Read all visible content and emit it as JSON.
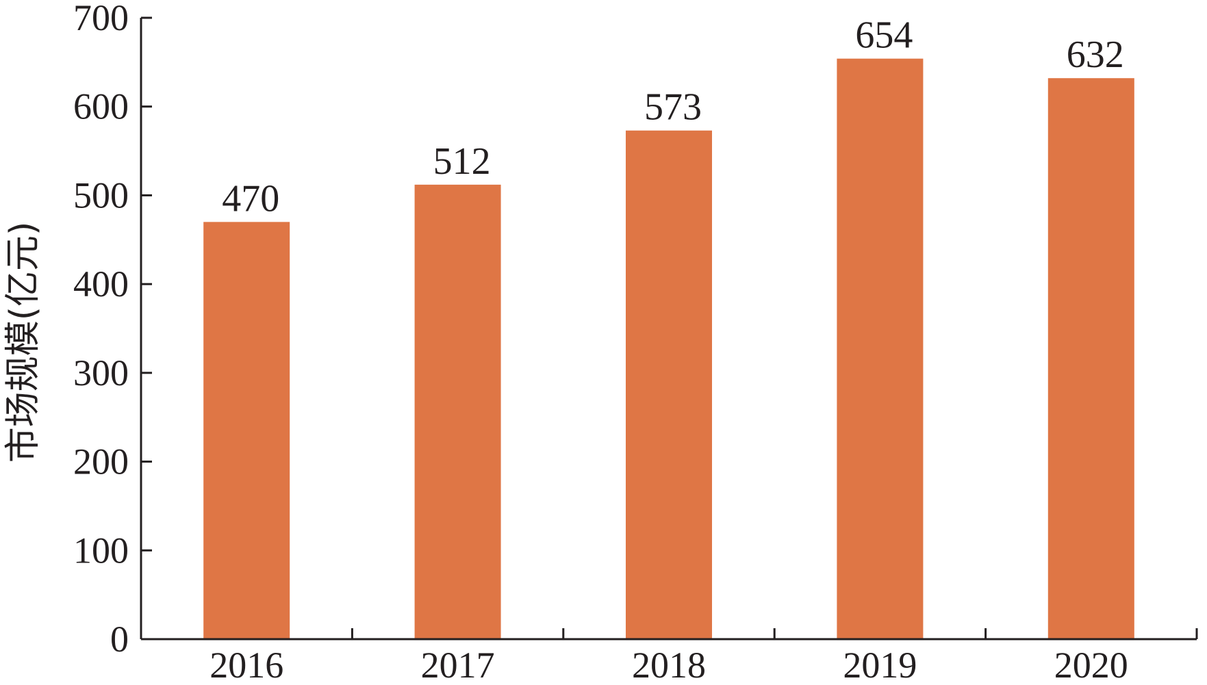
{
  "chart_data": {
    "type": "bar",
    "title": "",
    "xlabel": "",
    "ylabel": "市场规模(亿元)",
    "categories": [
      "2016",
      "2017",
      "2018",
      "2019",
      "2020"
    ],
    "values": [
      470,
      512,
      573,
      654,
      632
    ],
    "data_labels": [
      "470",
      "512",
      "573",
      "654",
      "632"
    ],
    "ylim": [
      0,
      700
    ],
    "yticks": [
      0,
      100,
      200,
      300,
      400,
      500,
      600,
      700
    ],
    "ytick_labels": [
      "0",
      "100",
      "200",
      "300",
      "400",
      "500",
      "600",
      "700"
    ],
    "grid": false,
    "legend": "none",
    "bar_color": "#df7645",
    "axis_color": "#231f20"
  }
}
